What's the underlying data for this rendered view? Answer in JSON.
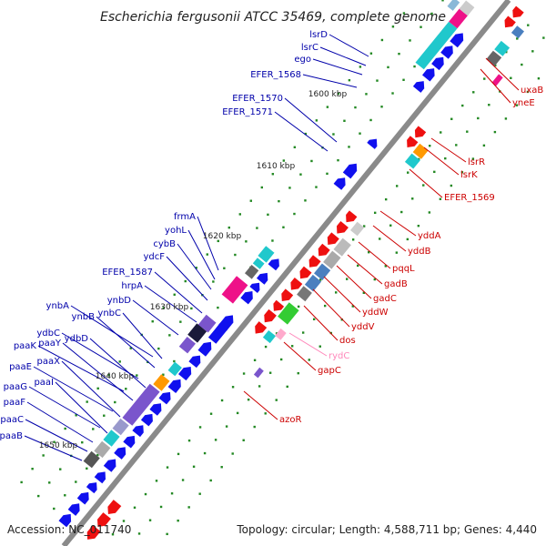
{
  "map": {
    "title": "Escherichia fergusonii ATCC 35469, complete genome",
    "accession_text": "Accession: NC_011740",
    "summary_text": "Topology: circular; Length: 4,588,711 bp; Genes: 4,440",
    "ticks": [
      {
        "label": "1600 kbp"
      },
      {
        "label": "1610 kbp"
      },
      {
        "label": "1620 kbp"
      },
      {
        "label": "1630 kbp"
      },
      {
        "label": "1640 kbp"
      },
      {
        "label": "1650 kbp"
      }
    ],
    "left_genes": [
      "lsrD",
      "lsrC",
      "ego",
      "EFER_1568",
      "EFER_1570",
      "EFER_1571",
      "frmA",
      "yohL",
      "cybB",
      "ydcF",
      "EFER_1587",
      "hrpA",
      "ynbD",
      "ynbA",
      "ynbB",
      "ynbC",
      "ydbC",
      "ydbD",
      "paaK",
      "paaY",
      "paaE",
      "paaX",
      "paaG",
      "paaI",
      "paaF",
      "paaC",
      "paaB"
    ],
    "right_genes": [
      "uxaB",
      "yneE",
      "lsrR",
      "lsrK",
      "EFER_1569",
      "yddA",
      "yddB",
      "pqqL",
      "gadB",
      "gadC",
      "yddW",
      "yddV",
      "dos",
      "rydC",
      "gapC",
      "azoR"
    ],
    "colors": {
      "forward": "#1010ee",
      "reverse": "#ee1010",
      "left_label": "#0000aa",
      "right_label": "#cc0000",
      "rna_label": "#ff88bb",
      "backbone": "#8a8a8a",
      "tick": "#228822",
      "cyan": "#20c8cc",
      "magenta": "#ee1188",
      "purple": "#7a55cc",
      "orange": "#ff9900",
      "green": "#33cc33",
      "steel": "#4a7fbf",
      "grey": "#b8b8b8"
    }
  }
}
